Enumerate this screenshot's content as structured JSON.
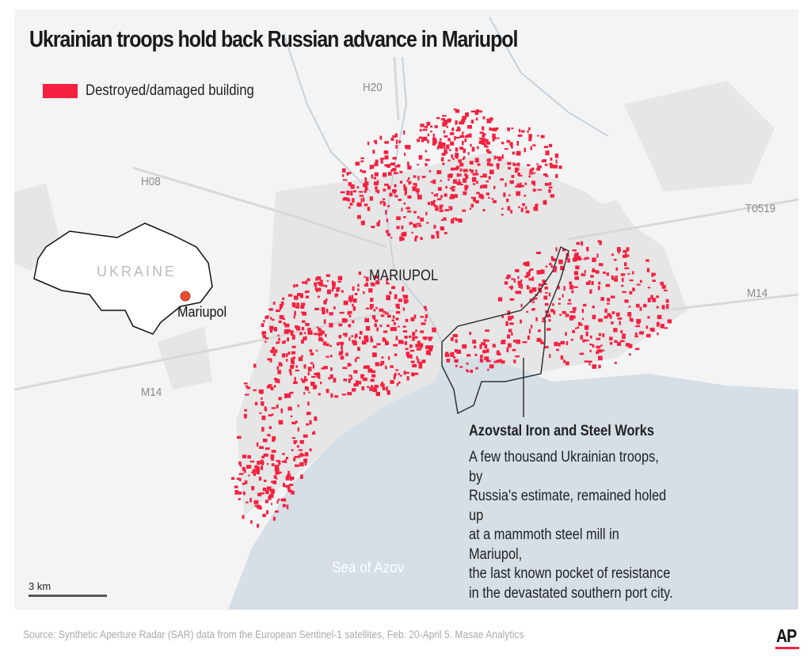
{
  "title": "Ukrainian troops hold back Russian advance in Mariupol",
  "legend": {
    "label": "Destroyed/damaged building",
    "color": "#f5203f"
  },
  "roads": {
    "h20": "H20",
    "h08": "H08",
    "t0519": "T0519",
    "m14_east": "M14",
    "m14_west": "M14"
  },
  "city_label": "MARIUPOL",
  "inset": {
    "country": "UKRAINE",
    "city": "Mariupol"
  },
  "water_label": "Sea of Azov",
  "annotation": {
    "title": "Azovstal Iron and Steel Works",
    "body": "A few thousand Ukrainian troops, by\nRussia's estimate, remained holed up\nat a mammoth steel mill in Mariupol,\nthe last known pocket of resistance\nin the devastated southern port city."
  },
  "scale_label": "3 km",
  "source": "Source: Synthetic Aperture Radar (SAR) data from the European Sentinel-1 satellites, Feb. 20-April 5. Masae Analytics",
  "logo": "AP",
  "colors": {
    "damage": "#f5203f",
    "sea": "#d6dee6",
    "land": "#f4f4f4",
    "urban": "#e6e6e6",
    "accent": "#f5203f"
  }
}
